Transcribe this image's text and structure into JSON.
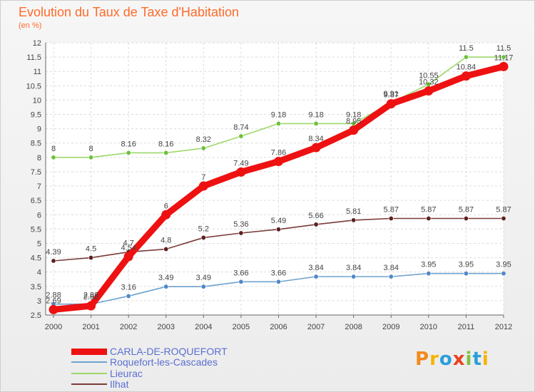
{
  "chart_data": {
    "type": "line",
    "title": "Evolution du Taux de Taxe d'Habitation",
    "subtitle": "(en %)",
    "xlabel": "",
    "ylabel": "",
    "categories": [
      "2000",
      "2001",
      "2002",
      "2003",
      "2004",
      "2005",
      "2006",
      "2007",
      "2008",
      "2009",
      "2010",
      "2011",
      "2012"
    ],
    "ylim": [
      2.5,
      12
    ],
    "yticks": [
      "2.5",
      "3",
      "3.5",
      "4",
      "4.5",
      "5",
      "5.5",
      "6",
      "6.5",
      "7",
      "7.5",
      "8",
      "8.5",
      "9",
      "9.5",
      "10",
      "10.5",
      "11",
      "11.5",
      "12"
    ],
    "grid": true,
    "legend_position": "bottom-left",
    "series": [
      {
        "name": "CARLA-DE-ROQUEFORT",
        "color": "#ee1111",
        "marker_color": "#ee1111",
        "values": [
          2.69,
          2.82,
          4.54,
          6,
          7,
          7.49,
          7.86,
          8.34,
          8.95,
          9.87,
          10.32,
          10.84,
          11.17
        ],
        "labels": [
          "2.69",
          "2.82",
          "4.54",
          "6",
          "7",
          "7.49",
          "7.86",
          "8.34",
          "8.95",
          "9.87",
          "10.32",
          "10.84",
          "11.17"
        ]
      },
      {
        "name": "Roquefort-les-Cascades",
        "color": "#6ea2cf",
        "marker_color": "#4f88c6",
        "values": [
          2.88,
          2.88,
          3.16,
          3.49,
          3.49,
          3.66,
          3.66,
          3.84,
          3.84,
          3.84,
          3.95,
          3.95,
          3.95
        ],
        "labels": [
          "2.88",
          "2.88",
          "3.16",
          "3.49",
          "3.49",
          "3.66",
          "3.66",
          "3.84",
          "3.84",
          "3.84",
          "3.95",
          "3.95",
          "3.95"
        ]
      },
      {
        "name": "Lieurac",
        "color": "#9ed86a",
        "marker_color": "#6cc13a",
        "values": [
          8,
          8,
          8.16,
          8.16,
          8.32,
          8.74,
          9.18,
          9.18,
          9.18,
          9.91,
          10.55,
          11.5,
          11.5
        ],
        "labels": [
          "8",
          "8",
          "8.16",
          "8.16",
          "8.32",
          "8.74",
          "9.18",
          "9.18",
          "9.18",
          "9.91",
          "10.55",
          "11.5",
          "11.5"
        ]
      },
      {
        "name": "Ilhat",
        "color": "#7a3b3b",
        "marker_color": "#5e1f1f",
        "values": [
          4.39,
          4.5,
          4.7,
          4.8,
          5.2,
          5.36,
          5.49,
          5.66,
          5.81,
          5.87,
          5.87,
          5.87,
          5.87
        ],
        "labels": [
          "4.39",
          "4.5",
          "4.7",
          "4.8",
          "5.2",
          "5.36",
          "5.49",
          "5.66",
          "5.81",
          "5.87",
          "5.87",
          "5.87",
          "5.87"
        ]
      }
    ]
  },
  "logo": {
    "text": "Proxiti",
    "colors": [
      "#f28a1c",
      "#f5b400",
      "#2a9fd8",
      "#e8421f",
      "#7cc242",
      "#2a9fd8",
      "#f5b400"
    ]
  }
}
